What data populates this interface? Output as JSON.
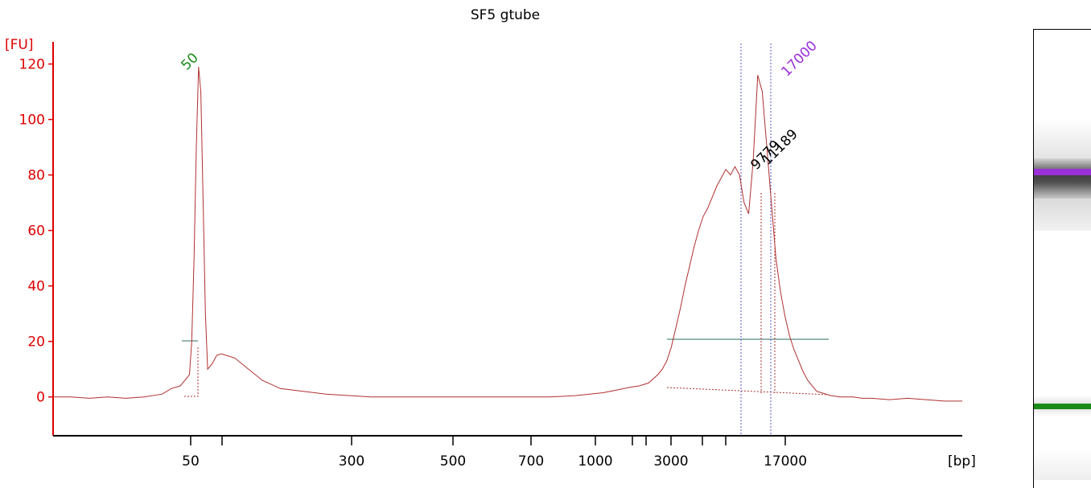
{
  "chart_data": {
    "type": "line",
    "title": "SF5 gtube",
    "ylabel": "[FU]",
    "xlabel": "[bp]",
    "ylim": [
      -14,
      128
    ],
    "y_ticks": [
      0,
      20,
      40,
      60,
      80,
      100,
      120
    ],
    "x_tick_labels": [
      "50",
      "300",
      "500",
      "700",
      "1000",
      "3000",
      "17000"
    ],
    "colors": {
      "axis": "#dd0000",
      "trace": "#b03030",
      "marker_lower": "#1a8c1a",
      "marker_upper": "#9b30d9",
      "region": "#2e6e64",
      "peak_label": "#000000",
      "dotted_line": "#5555cc"
    },
    "series": [
      {
        "values_x": [
          0,
          4,
          8,
          12,
          16,
          20,
          24,
          26,
          28,
          30,
          30.5,
          31,
          31.5,
          32,
          32.5,
          33,
          33.5,
          34,
          35,
          36,
          37,
          38,
          40,
          43,
          46,
          50,
          55,
          60,
          65,
          70,
          75,
          80,
          85,
          90,
          95,
          100,
          103,
          106,
          109,
          112,
          115,
          118,
          121,
          124,
          127,
          129,
          131,
          133,
          134,
          135,
          136,
          137,
          138,
          139,
          140,
          141,
          142,
          143,
          144,
          145,
          146,
          147,
          148,
          149,
          150,
          151,
          152,
          153,
          154,
          155,
          156,
          157,
          158,
          159,
          160,
          161,
          162,
          163,
          164,
          165,
          166,
          167,
          168,
          169,
          170,
          171,
          172,
          173,
          174,
          176,
          178,
          180,
          184,
          188,
          192,
          196,
          200
        ],
        "values_y": [
          0,
          0,
          -0.5,
          0,
          -0.5,
          0,
          1,
          3,
          4,
          8,
          20,
          50,
          90,
          119,
          110,
          70,
          30,
          10,
          12,
          15,
          15.5,
          15,
          14,
          10,
          6,
          3,
          2,
          1,
          0.5,
          0,
          0,
          0,
          0,
          0,
          0,
          0,
          0,
          0,
          0,
          0.2,
          0.5,
          1,
          1.5,
          2.5,
          3.5,
          4,
          5,
          8,
          10,
          13,
          18,
          25,
          32,
          40,
          47,
          54,
          60,
          65,
          68,
          72,
          76,
          79,
          82,
          80,
          83,
          80,
          70,
          66,
          85,
          116,
          110,
          90,
          70,
          50,
          38,
          29,
          22,
          17,
          13,
          9,
          6,
          4,
          2,
          1.5,
          1,
          0.5,
          0.3,
          0,
          0,
          0,
          -0.5,
          -0.5,
          -1,
          -0.5,
          -1,
          -1.5,
          -1.5
        ]
      }
    ],
    "marker_lower": {
      "label": "50",
      "x": 50
    },
    "marker_upper": {
      "label": "17000",
      "x": 17000
    },
    "peak_labels": [
      "9779",
      "11189"
    ]
  }
}
